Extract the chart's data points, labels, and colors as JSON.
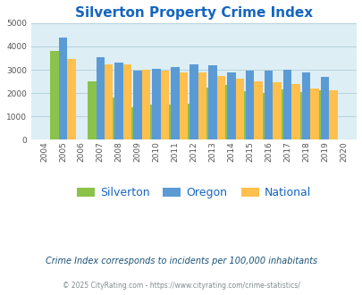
{
  "title": "Silverton Property Crime Index",
  "years": [
    2005,
    2007,
    2008,
    2009,
    2010,
    2011,
    2012,
    2013,
    2014,
    2015,
    2016,
    2017,
    2018,
    2019
  ],
  "silverton": [
    3800,
    2500,
    1800,
    1380,
    1500,
    1500,
    1560,
    2220,
    2370,
    2100,
    2000,
    2150,
    2050,
    2130
  ],
  "oregon": [
    4400,
    3550,
    3300,
    2980,
    3050,
    3120,
    3220,
    3190,
    2880,
    2980,
    2980,
    3000,
    2900,
    2700
  ],
  "national": [
    3450,
    3250,
    3250,
    3020,
    2960,
    2900,
    2870,
    2720,
    2610,
    2490,
    2460,
    2380,
    2200,
    2120
  ],
  "silverton_color": "#8bc34a",
  "oregon_color": "#5b9bd5",
  "national_color": "#ffc04d",
  "bg_color": "#ddeef5",
  "fig_color": "#ffffff",
  "title_color": "#1565c0",
  "grid_color": "#b0cdd8",
  "tick_color": "#555555",
  "ylim": [
    0,
    5000
  ],
  "yticks": [
    0,
    1000,
    2000,
    3000,
    4000,
    5000
  ],
  "xlim_min": 2003.3,
  "xlim_max": 2020.7,
  "bar_width": 0.45,
  "legend_labels": [
    "Silverton",
    "Oregon",
    "National"
  ],
  "legend_fontsize": 9,
  "title_fontsize": 11,
  "tick_fontsize": 6.5,
  "footnote1": "Crime Index corresponds to incidents per 100,000 inhabitants",
  "footnote2": "© 2025 CityRating.com - https://www.cityrating.com/crime-statistics/",
  "footnote1_color": "#1a5276",
  "footnote2_color": "#7f8c8d"
}
